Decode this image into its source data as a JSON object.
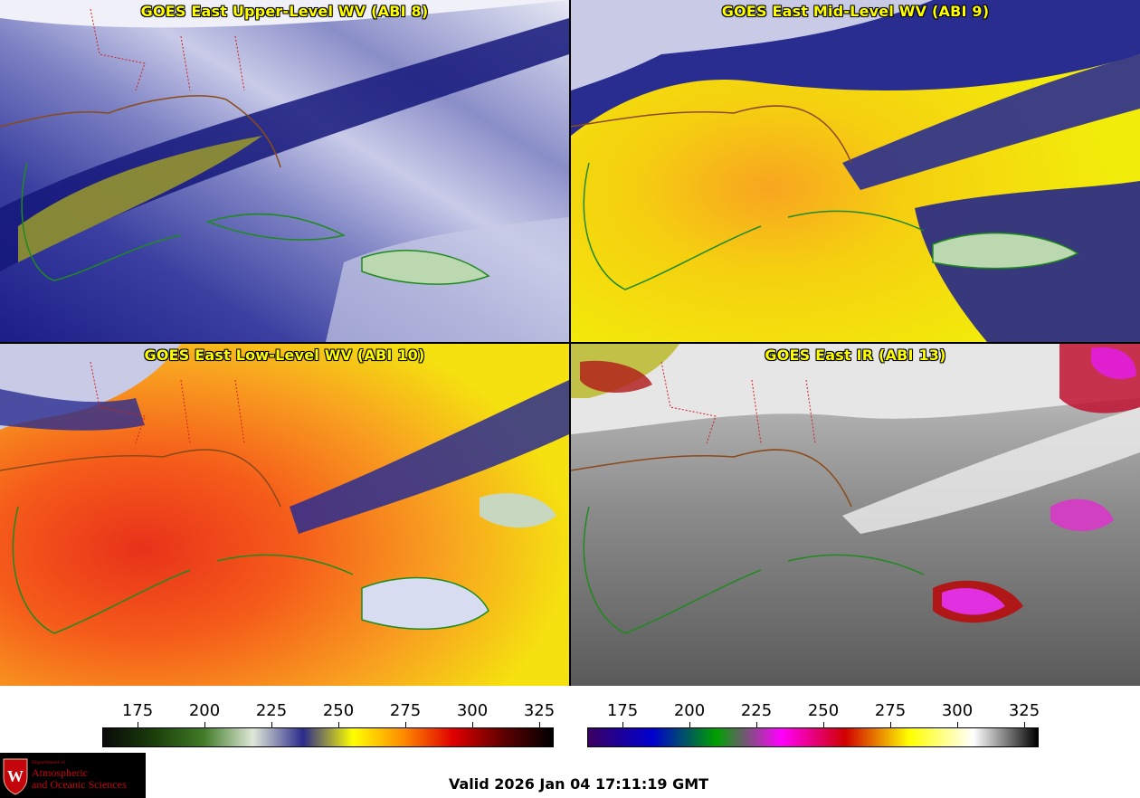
{
  "panels": {
    "p1": {
      "title": "GOES East Upper-Level WV (ABI 8)"
    },
    "p2": {
      "title": "GOES East Mid-Level WV (ABI 9)"
    },
    "p3": {
      "title": "GOES East Low-Level WV (ABI 10)"
    },
    "p4": {
      "title": "GOES East IR (ABI 13)"
    }
  },
  "colorbar_wv": {
    "ticks": [
      "175",
      "200",
      "225",
      "250",
      "275",
      "300",
      "325"
    ],
    "colors": [
      "#0a0a0a",
      "#1a3d0a",
      "#3f7a25",
      "#dfe8d8",
      "#2b2b8c",
      "#ffff00",
      "#ff8c00",
      "#e00000",
      "#600000",
      "#000000"
    ]
  },
  "colorbar_ir": {
    "ticks": [
      "175",
      "200",
      "225",
      "250",
      "275",
      "300",
      "325"
    ],
    "colors": [
      "#3a0060",
      "#0000d0",
      "#00a000",
      "#ff00ff",
      "#d00000",
      "#ffff00",
      "#ffffff",
      "#000000"
    ]
  },
  "logo": {
    "dept": "Department of",
    "line1": "Atmospheric",
    "line2": "and Oceanic Sciences"
  },
  "footer": {
    "valid": "Valid 2026 Jan 04 17:11:19 GMT"
  }
}
